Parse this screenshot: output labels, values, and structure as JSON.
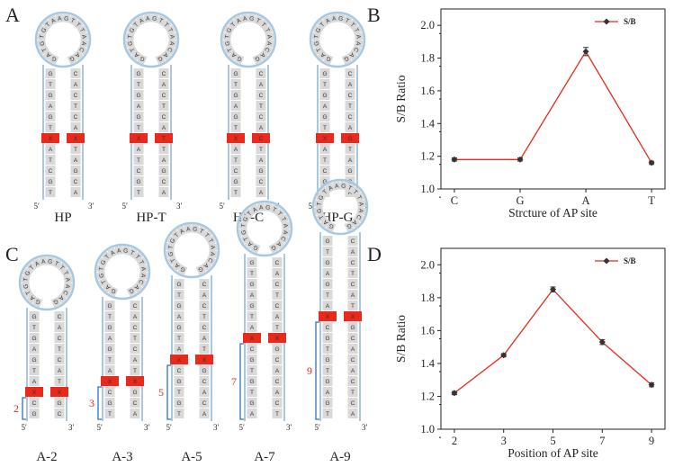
{
  "panel_labels": [
    "A",
    "B",
    "C",
    "D"
  ],
  "colors": {
    "line": "#e8291b",
    "marker": "#333333",
    "ap_site": "#e8291b",
    "base_box": "#d9d9d9",
    "loop": "#a6c8e2",
    "bracket": "#2f6fbf",
    "count": "#e8291b"
  },
  "hairpin": {
    "loop_seq": [
      "G",
      "A",
      "T",
      "G",
      "T",
      "G",
      "T",
      "A",
      "A",
      "G",
      "T",
      "T",
      "T",
      "A",
      "A",
      "C",
      "A",
      "G"
    ],
    "stem_left": [
      "G",
      "T",
      "G",
      "A",
      "G",
      "T",
      "X",
      "A",
      "T",
      "C",
      "G",
      "T"
    ],
    "stem_right": [
      "C",
      "A",
      "C",
      "T",
      "C",
      "A",
      "X",
      "T",
      "A",
      "G",
      "C",
      "A"
    ],
    "end5": "5′",
    "end3": "3′"
  },
  "panelA": {
    "hairpins": [
      {
        "label": "HP",
        "ap_left": "X",
        "ap_right": "X"
      },
      {
        "label": "HP-T",
        "ap_left": "X",
        "ap_right": "T"
      },
      {
        "label": "HP-C",
        "ap_left": "X",
        "ap_right": "C"
      },
      {
        "label": "HP-G",
        "ap_left": "X",
        "ap_right": "G"
      }
    ]
  },
  "panelC": {
    "hairpins": [
      {
        "label": "A-2",
        "position": 2,
        "count": "2"
      },
      {
        "label": "A-3",
        "position": 3,
        "count": "3"
      },
      {
        "label": "A-5",
        "position": 5,
        "count": "5"
      },
      {
        "label": "A-7",
        "position": 7,
        "count": "7"
      },
      {
        "label": "A-9",
        "position": 9,
        "count": "9"
      }
    ]
  },
  "chart_data": [
    {
      "type": "line",
      "panel": "B",
      "categories": [
        "C",
        "G",
        "A",
        "T"
      ],
      "series": [
        {
          "name": "S/B",
          "values": [
            1.18,
            1.18,
            1.84,
            1.16
          ],
          "errors": [
            0.01,
            0.01,
            0.025,
            0.01
          ]
        }
      ],
      "xlabel": "Strcture of AP site",
      "ylabel": "S/B Ratio",
      "ylim": [
        1.0,
        2.1
      ],
      "yticks": [
        "1.0",
        "1.2",
        "1.4",
        "1.6",
        "1.8",
        "2.0"
      ],
      "legend": "top-right"
    },
    {
      "type": "line",
      "panel": "D",
      "categories": [
        "2",
        "3",
        "5",
        "7",
        "9"
      ],
      "series": [
        {
          "name": "S/B",
          "values": [
            1.22,
            1.45,
            1.85,
            1.53,
            1.27
          ],
          "errors": [
            0.01,
            0.01,
            0.015,
            0.015,
            0.012
          ]
        }
      ],
      "xlabel": "Position of AP site",
      "ylabel": "S/B Ratio",
      "ylim": [
        1.0,
        2.1
      ],
      "yticks": [
        "1.0",
        "1.2",
        "1.4",
        "1.6",
        "1.8",
        "2.0"
      ],
      "legend": "top-right"
    }
  ]
}
